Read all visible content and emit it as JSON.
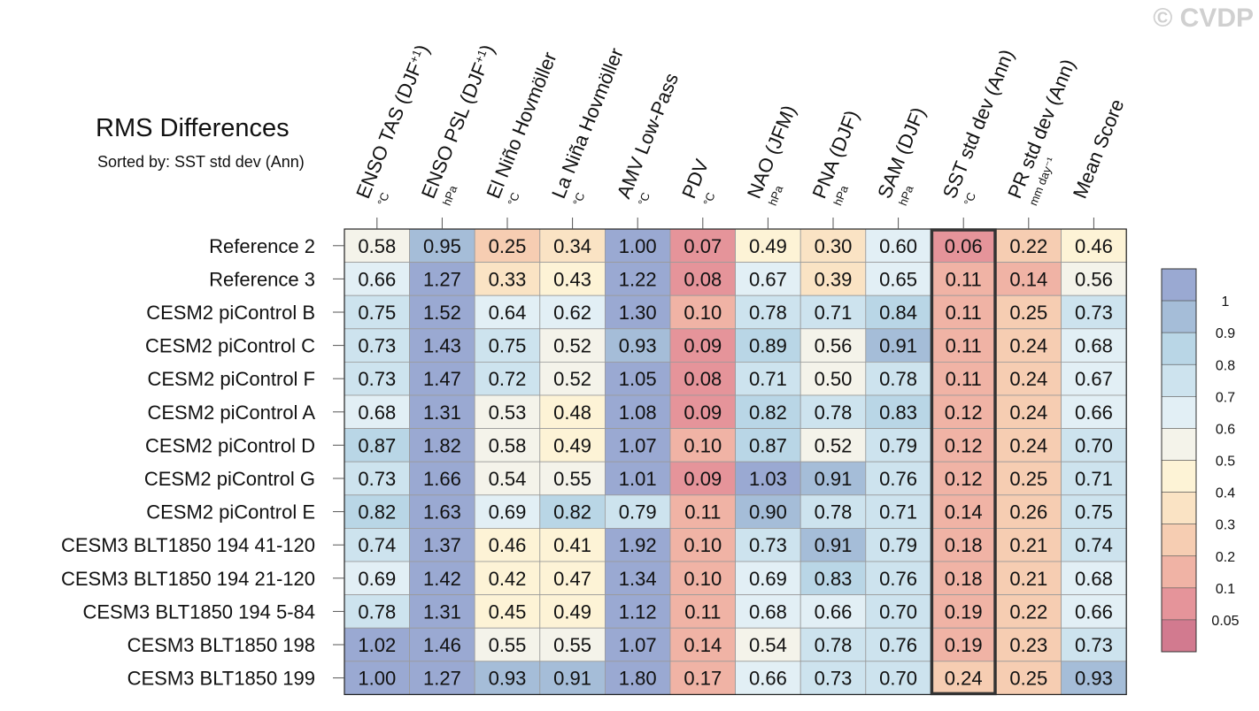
{
  "title": "RMS Differences",
  "subtitle": "Sorted by: SST std dev (Ann)",
  "watermark": "© CVDP",
  "colors": {
    "palette": [
      "#d27a8f",
      "#e5949a",
      "#f0b3a5",
      "#f6cdb2",
      "#fae3c4",
      "#fdf3d6",
      "#f4f3ea",
      "#e2eff5",
      "#cde3ee",
      "#b9d6e6",
      "#a5bdd8",
      "#9aa9d2"
    ],
    "grid": "#9a9a9a",
    "highlight_border": "#333333"
  },
  "chart_data": {
    "type": "heatmap",
    "title": "RMS Differences",
    "subtitle": "Sorted by: SST std dev (Ann)",
    "columns": [
      {
        "label": "ENSO TAS (DJF",
        "sup": "+1",
        "close": ")",
        "unit": "°C"
      },
      {
        "label": "ENSO PSL (DJF",
        "sup": "+1",
        "close": ")",
        "unit": "hPa"
      },
      {
        "label": "El Niño Hovmöller",
        "sup": "",
        "close": "",
        "unit": "°C"
      },
      {
        "label": "La Niña Hovmöller",
        "sup": "",
        "close": "",
        "unit": "°C"
      },
      {
        "label": "AMV Low-Pass",
        "sup": "",
        "close": "",
        "unit": "°C"
      },
      {
        "label": "PDV",
        "sup": "",
        "close": "",
        "unit": "°C"
      },
      {
        "label": "NAO (JFM)",
        "sup": "",
        "close": "",
        "unit": "hPa"
      },
      {
        "label": "PNA (DJF)",
        "sup": "",
        "close": "",
        "unit": "hPa"
      },
      {
        "label": "SAM (DJF)",
        "sup": "",
        "close": "",
        "unit": "hPa"
      },
      {
        "label": "SST std dev (Ann)",
        "sup": "",
        "close": "",
        "unit": "°C"
      },
      {
        "label": "PR std dev (Ann)",
        "sup": "",
        "close": "",
        "unit": "mm day⁻¹"
      },
      {
        "label": "Mean Score",
        "sup": "",
        "close": "",
        "unit": ""
      }
    ],
    "rows": [
      "Reference 2",
      "Reference 3",
      "CESM2 piControl B",
      "CESM2 piControl C",
      "CESM2 piControl F",
      "CESM2 piControl A",
      "CESM2 piControl D",
      "CESM2 piControl G",
      "CESM2 piControl E",
      "CESM3 BLT1850 194 41-120",
      "CESM3 BLT1850 194 21-120",
      "CESM3 BLT1850 194 5-84",
      "CESM3 BLT1850 198",
      "CESM3 BLT1850 199"
    ],
    "values": [
      [
        0.58,
        0.95,
        0.25,
        0.34,
        1.0,
        0.07,
        0.49,
        0.3,
        0.6,
        0.06,
        0.22,
        0.46
      ],
      [
        0.66,
        1.27,
        0.33,
        0.43,
        1.22,
        0.08,
        0.67,
        0.39,
        0.65,
        0.11,
        0.14,
        0.56
      ],
      [
        0.75,
        1.52,
        0.64,
        0.62,
        1.3,
        0.1,
        0.78,
        0.71,
        0.84,
        0.11,
        0.25,
        0.73
      ],
      [
        0.73,
        1.43,
        0.75,
        0.52,
        0.93,
        0.09,
        0.89,
        0.56,
        0.91,
        0.11,
        0.24,
        0.68
      ],
      [
        0.73,
        1.47,
        0.72,
        0.52,
        1.05,
        0.08,
        0.71,
        0.5,
        0.78,
        0.11,
        0.24,
        0.67
      ],
      [
        0.68,
        1.31,
        0.53,
        0.48,
        1.08,
        0.09,
        0.82,
        0.78,
        0.83,
        0.12,
        0.24,
        0.66
      ],
      [
        0.87,
        1.82,
        0.58,
        0.49,
        1.07,
        0.1,
        0.87,
        0.52,
        0.79,
        0.12,
        0.24,
        0.7
      ],
      [
        0.73,
        1.66,
        0.54,
        0.55,
        1.01,
        0.09,
        1.03,
        0.91,
        0.76,
        0.12,
        0.25,
        0.71
      ],
      [
        0.82,
        1.63,
        0.69,
        0.82,
        0.79,
        0.11,
        0.9,
        0.78,
        0.71,
        0.14,
        0.26,
        0.75
      ],
      [
        0.74,
        1.37,
        0.46,
        0.41,
        1.92,
        0.1,
        0.73,
        0.91,
        0.79,
        0.18,
        0.21,
        0.74
      ],
      [
        0.69,
        1.42,
        0.42,
        0.47,
        1.34,
        0.1,
        0.69,
        0.83,
        0.76,
        0.18,
        0.21,
        0.68
      ],
      [
        0.78,
        1.31,
        0.45,
        0.49,
        1.12,
        0.11,
        0.68,
        0.66,
        0.7,
        0.19,
        0.22,
        0.66
      ],
      [
        1.02,
        1.46,
        0.55,
        0.55,
        1.07,
        0.14,
        0.54,
        0.78,
        0.76,
        0.19,
        0.23,
        0.73
      ],
      [
        1.0,
        1.27,
        0.93,
        0.91,
        1.8,
        0.17,
        0.66,
        0.73,
        0.7,
        0.24,
        0.25,
        0.93
      ]
    ],
    "highlighted_column": 9,
    "colorbar": {
      "levels": [
        0.05,
        0.1,
        0.2,
        0.3,
        0.4,
        0.5,
        0.6,
        0.7,
        0.8,
        0.9,
        1
      ],
      "labels": [
        "0.05",
        "0.1",
        "0.2",
        "0.3",
        "0.4",
        "0.5",
        "0.6",
        "0.7",
        "0.8",
        "0.9",
        "1"
      ]
    }
  }
}
